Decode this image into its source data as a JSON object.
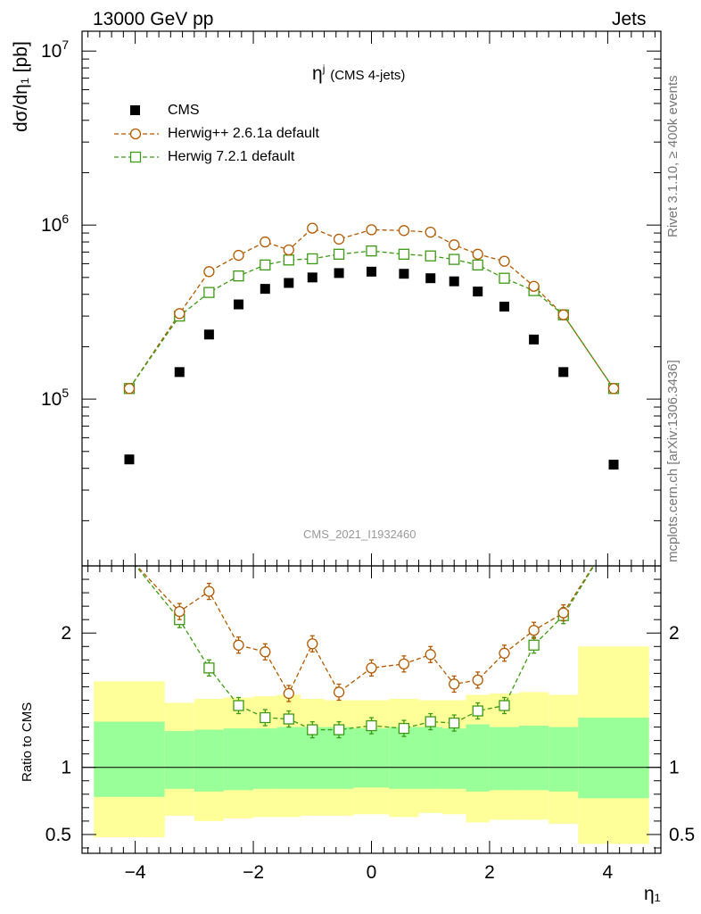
{
  "header": {
    "left": "13000 GeV pp",
    "right": "Jets"
  },
  "side_labels": {
    "rivet": "Rivet 3.1.10, ≥ 400k events",
    "mcplots": "mcplots.cern.ch [arXiv:1306.3436]"
  },
  "plot_title": {
    "main": "η",
    "sup": "j",
    "note": "(CMS 4-jets)"
  },
  "watermark": "CMS_2021_I1932460",
  "upper_ylabel": "dσ/dη₁ [pb]",
  "ratio_ylabel": "Ratio to CMS",
  "xlabel": "η₁",
  "legend": [
    {
      "label": "CMS",
      "marker": "filled-square",
      "color": "#000000"
    },
    {
      "label": "Herwig++ 2.6.1a default",
      "marker": "open-circle",
      "color": "#b35900"
    },
    {
      "label": "Herwig 7.2.1 default",
      "marker": "open-square",
      "color": "#3c9a14"
    }
  ],
  "chart_data": {
    "type": "scatter",
    "x_ticks": [
      -4,
      -2,
      0,
      2,
      4
    ],
    "xlim": [
      -4.9,
      4.9
    ],
    "upper": {
      "yscale": "log",
      "ylim": [
        11000,
        13000000
      ],
      "y_tick_labels": [
        "10^5",
        "10^6",
        "10^7"
      ],
      "bin_edges": [
        -4.7,
        -3.5,
        -3.0,
        -2.5,
        -2.0,
        -1.6,
        -1.2,
        -0.8,
        -0.3,
        0.3,
        0.8,
        1.2,
        1.6,
        2.0,
        2.5,
        3.0,
        3.5,
        4.7
      ],
      "x": [
        -4.1,
        -3.25,
        -2.75,
        -2.25,
        -1.8,
        -1.4,
        -1.0,
        -0.55,
        0.0,
        0.55,
        1.0,
        1.4,
        1.8,
        2.25,
        2.75,
        3.25,
        4.1
      ],
      "series": [
        {
          "name": "CMS",
          "values": [
            45000,
            143000,
            235000,
            350000,
            430000,
            465000,
            500000,
            530000,
            540000,
            525000,
            495000,
            475000,
            415000,
            340000,
            220000,
            143000,
            42000
          ]
        },
        {
          "name": "Herwig++ 2.6.1a default",
          "values": [
            115000,
            310000,
            540000,
            670000,
            800000,
            720000,
            960000,
            830000,
            940000,
            930000,
            910000,
            770000,
            680000,
            620000,
            445000,
            305000,
            115000
          ]
        },
        {
          "name": "Herwig 7.2.1 default",
          "values": [
            115000,
            300000,
            410000,
            510000,
            590000,
            630000,
            640000,
            680000,
            710000,
            680000,
            665000,
            635000,
            590000,
            495000,
            420000,
            305000,
            115000
          ]
        }
      ]
    },
    "ratio": {
      "ylim": [
        0.36,
        2.5
      ],
      "y_ticks": [
        0.5,
        1,
        2
      ],
      "reference": 1,
      "band_outer_high": [
        1.64,
        1.48,
        1.51,
        1.52,
        1.53,
        1.54,
        1.51,
        1.5,
        1.5,
        1.51,
        1.5,
        1.5,
        1.54,
        1.55,
        1.56,
        1.54,
        1.9
      ],
      "band_outer_low": [
        0.48,
        0.64,
        0.6,
        0.62,
        0.63,
        0.63,
        0.64,
        0.64,
        0.65,
        0.63,
        0.66,
        0.65,
        0.59,
        0.61,
        0.61,
        0.58,
        0.43
      ],
      "band_inner_high": [
        1.34,
        1.27,
        1.28,
        1.29,
        1.29,
        1.3,
        1.3,
        1.3,
        1.29,
        1.3,
        1.3,
        1.29,
        1.32,
        1.3,
        1.31,
        1.3,
        1.37
      ],
      "band_inner_low": [
        0.78,
        0.84,
        0.82,
        0.83,
        0.84,
        0.84,
        0.84,
        0.84,
        0.85,
        0.84,
        0.84,
        0.84,
        0.82,
        0.83,
        0.83,
        0.82,
        0.77
      ],
      "series": [
        {
          "name": "Herwig++ 2.6.1a default",
          "values": [
            2.56,
            2.16,
            2.31,
            1.91,
            1.86,
            1.55,
            1.92,
            1.56,
            1.74,
            1.77,
            1.84,
            1.62,
            1.65,
            1.85,
            2.02,
            2.15,
            2.74
          ]
        },
        {
          "name": "Herwig 7.2.1 default",
          "values": [
            2.56,
            2.1,
            1.74,
            1.46,
            1.37,
            1.36,
            1.28,
            1.28,
            1.31,
            1.29,
            1.34,
            1.33,
            1.42,
            1.46,
            1.91,
            2.13,
            2.74
          ]
        }
      ]
    }
  }
}
